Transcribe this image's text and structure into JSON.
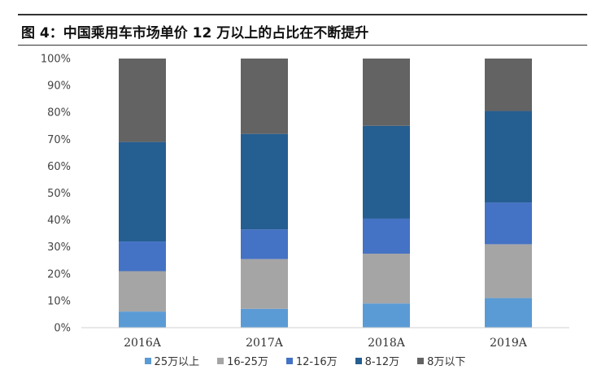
{
  "title": "图 4：中国乘用车市场单价 12 万以上的占比在不断提升",
  "chart_data": {
    "type": "bar",
    "stacked": true,
    "categories": [
      "2016A",
      "2017A",
      "2018A",
      "2019A"
    ],
    "series": [
      {
        "name": "25万以上",
        "color": "#5B9BD5",
        "values": [
          6,
          7,
          9,
          11
        ]
      },
      {
        "name": "16-25万",
        "color": "#A5A5A5",
        "values": [
          15,
          18.5,
          18.5,
          20
        ]
      },
      {
        "name": "12-16万",
        "color": "#4472C4",
        "values": [
          11,
          11,
          13,
          15.5
        ]
      },
      {
        "name": "8-12万",
        "color": "#255E91",
        "values": [
          37,
          35.5,
          34.5,
          34
        ]
      },
      {
        "name": "8万以下",
        "color": "#636363",
        "values": [
          31,
          28,
          25,
          19.5
        ]
      }
    ],
    "ylim": [
      0,
      100
    ],
    "yticks": [
      "0%",
      "10%",
      "20%",
      "30%",
      "40%",
      "50%",
      "60%",
      "70%",
      "80%",
      "90%",
      "100%"
    ],
    "grid": false,
    "legend_position": "bottom"
  }
}
